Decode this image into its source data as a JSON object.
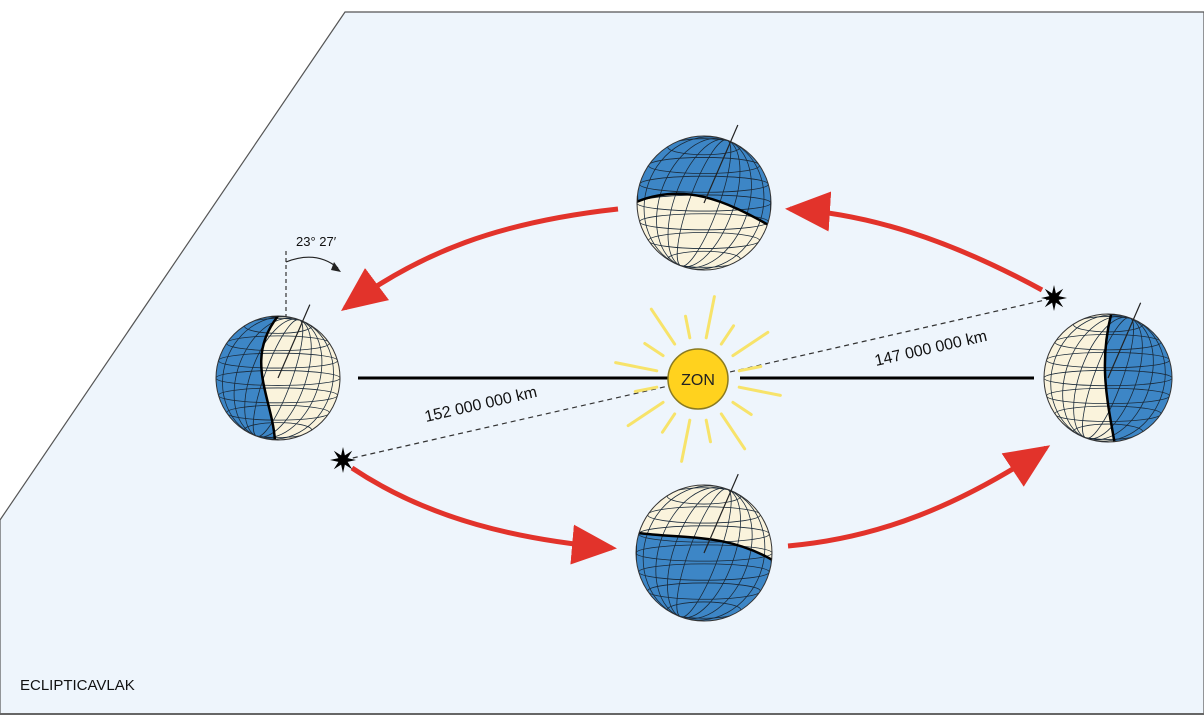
{
  "plane": {
    "label": "ECLIPTICAVLAK",
    "fill": "#eef5fc"
  },
  "sun": {
    "label": "ZON",
    "fill": "#ffd21e",
    "ray_color": "#f7e36a"
  },
  "distances": {
    "aphelion": "152 000 000 km",
    "perihelion": "147 000 000 km"
  },
  "tilt": {
    "label": "23° 27′"
  },
  "colors": {
    "ocean": "#3d86c6",
    "land": "#faf3dc",
    "orbit_arrow": "#e2332b",
    "grid": "#1a2a3a"
  },
  "earths": [
    {
      "position": "left",
      "dark_side": "left"
    },
    {
      "position": "top",
      "dark_side": "top"
    },
    {
      "position": "right",
      "dark_side": "right"
    },
    {
      "position": "bottom",
      "dark_side": "bottom"
    }
  ]
}
